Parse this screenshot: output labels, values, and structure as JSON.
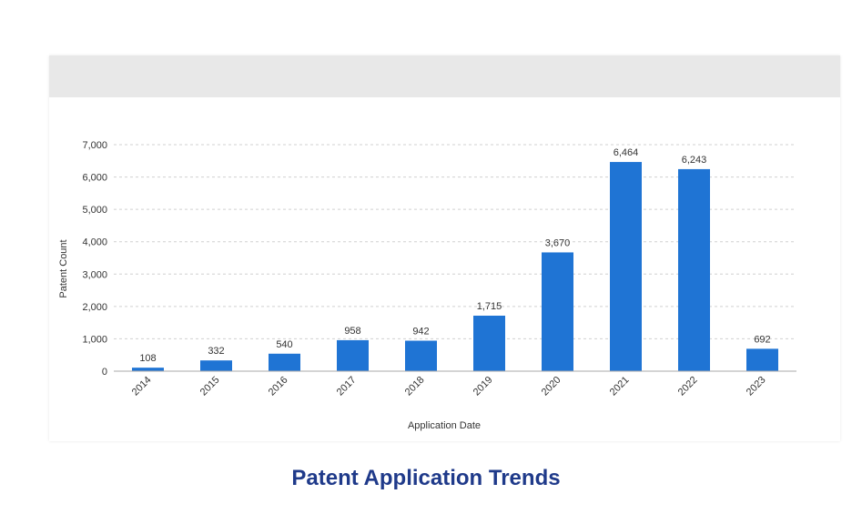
{
  "caption": "Patent Application Trends",
  "chart_data": {
    "type": "bar",
    "categories": [
      "2014",
      "2015",
      "2016",
      "2017",
      "2018",
      "2019",
      "2020",
      "2021",
      "2022",
      "2023"
    ],
    "values": [
      108,
      332,
      540,
      958,
      942,
      1715,
      3670,
      6464,
      6243,
      692
    ],
    "value_labels": [
      "108",
      "332",
      "540",
      "958",
      "942",
      "1,715",
      "3,670",
      "6,464",
      "6,243",
      "692"
    ],
    "title": "",
    "xlabel": "Application Date",
    "ylabel": "Patent Count",
    "ylim": [
      0,
      7000
    ],
    "yticks": [
      0,
      1000,
      2000,
      3000,
      4000,
      5000,
      6000,
      7000
    ],
    "ytick_labels": [
      "0",
      "1,000",
      "2,000",
      "3,000",
      "4,000",
      "5,000",
      "6,000",
      "7,000"
    ],
    "grid": true,
    "legend": "none",
    "bar_color": "#1f74d4",
    "grid_color": "#d0d0d0"
  }
}
